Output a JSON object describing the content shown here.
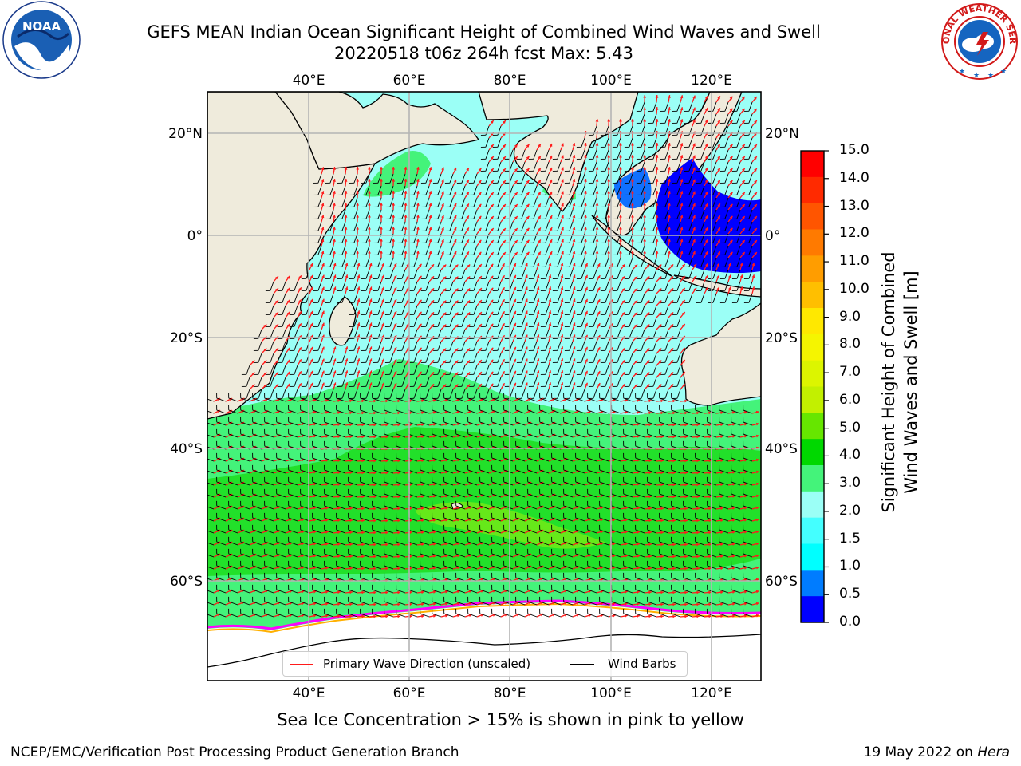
{
  "header": {
    "title_line1": "GEFS MEAN Indian Ocean Significant Height of Combined Wind Waves and Swell",
    "title_line2": "20220518 t06z 264h fcst   Max: 5.43"
  },
  "map": {
    "lon_labels_top": [
      "40°E",
      "60°E",
      "80°E",
      "100°E",
      "120°E"
    ],
    "lon_labels_bottom": [
      "40°E",
      "60°E",
      "80°E",
      "100°E",
      "120°E"
    ],
    "lat_labels_left": [
      "20°N",
      "0°",
      "20°S",
      "40°S",
      "60°S"
    ],
    "lat_labels_right": [
      "20°N",
      "0°",
      "20°S",
      "40°S",
      "60°S"
    ],
    "colors": {
      "land": "#efebdc",
      "ice": "#ffffff",
      "grid": "#b4b4b4",
      "wave_arrow": "#ff1a1a",
      "barb": "#000000",
      "ice_edge": [
        "#ff00ff",
        "#ffb000"
      ]
    }
  },
  "legend": {
    "wave_label": "Primary Wave Direction (unscaled)",
    "barb_label": "Wind Barbs"
  },
  "colorbar": {
    "title": "Significant Height of Combined\nWind Waves and Swell [m]",
    "tick_labels": [
      "15.0",
      "14.0",
      "13.0",
      "12.0",
      "11.0",
      "10.0",
      "9.0",
      "8.0",
      "7.0",
      "6.0",
      "5.0",
      "4.0",
      "3.0",
      "2.0",
      "1.5",
      "1.0",
      "0.5",
      "0.0"
    ],
    "colors_top_to_bottom": [
      "#ff0000",
      "#ff2a00",
      "#ff5500",
      "#ff7a00",
      "#ff9d00",
      "#ffbf00",
      "#ffe800",
      "#f5f500",
      "#dcf500",
      "#c2f000",
      "#66e600",
      "#00d800",
      "#44f37a",
      "#9bfff6",
      "#44ffff",
      "#00ffff",
      "#007cff",
      "#0000ff"
    ]
  },
  "footer": {
    "note": "Sea Ice Concentration > 15% is shown in pink to yellow",
    "left": "NCEP/EMC/Verification Post Processing Product Generation Branch",
    "right_prefix": "19 May 2022 on ",
    "right_machine": "Hera"
  },
  "logos": {
    "noaa_text": "NOAA",
    "nws_text": "NATIONAL WEATHER SERVICE"
  }
}
